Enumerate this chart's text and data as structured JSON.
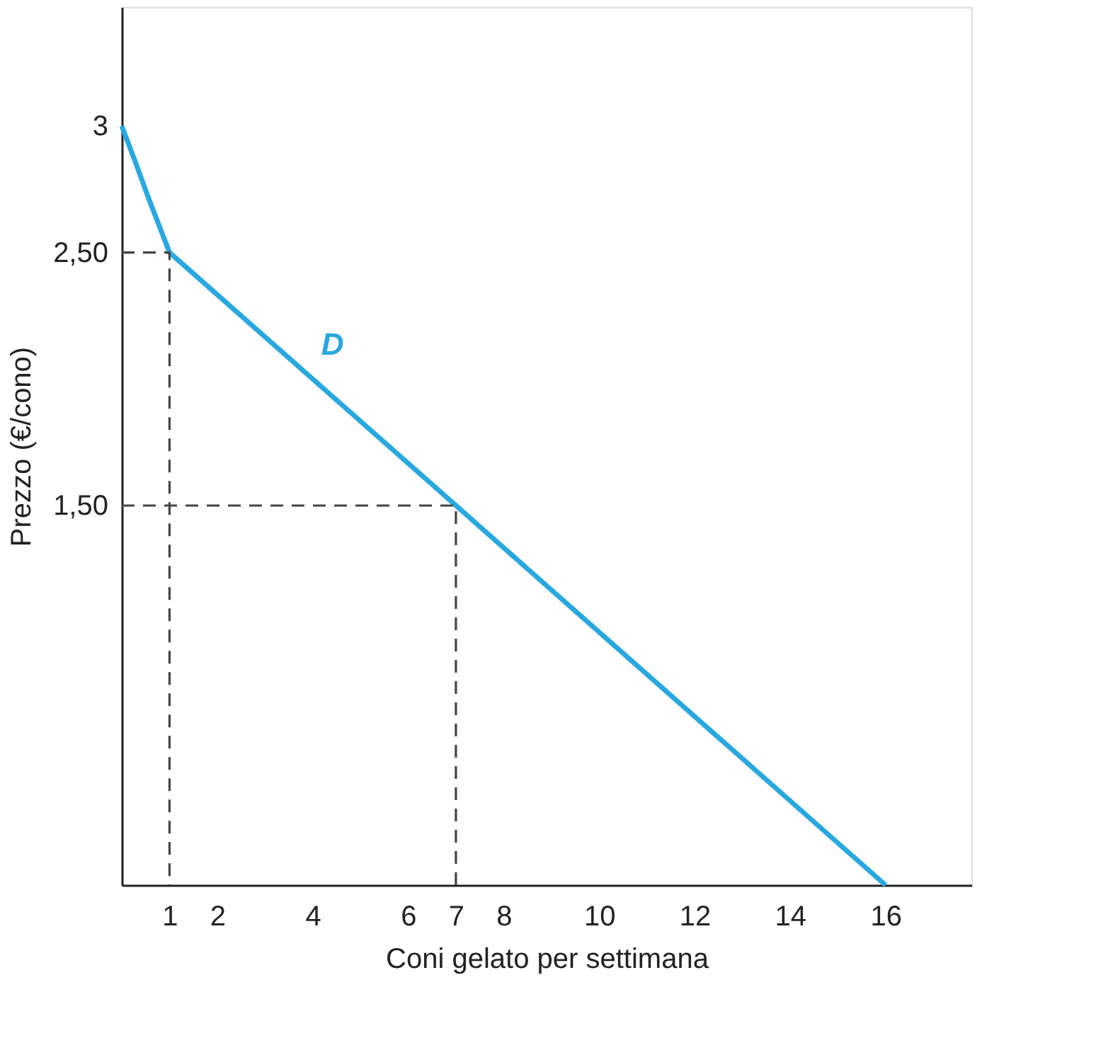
{
  "chart_data": {
    "type": "line",
    "xlabel": "Coni gelato per settimana",
    "ylabel": "Prezzo (€/cono)",
    "xlim": [
      0,
      17.8
    ],
    "ylim": [
      0,
      3.47
    ],
    "xticks": [
      1,
      2,
      4,
      6,
      7,
      8,
      10,
      12,
      14,
      16
    ],
    "yticks": [
      {
        "value": 1.5,
        "label": "1,50"
      },
      {
        "value": 2.5,
        "label": "2,50"
      },
      3
    ],
    "grid": false,
    "marker": "none",
    "series": [
      {
        "name": "D",
        "color": "#29a8e0",
        "line_style": "solid",
        "x": [
          0,
          0.3,
          0.55,
          1,
          7,
          16
        ],
        "values": [
          3,
          2.85,
          2.72,
          2.5,
          1.5,
          0
        ]
      },
      {
        "color": "#444444",
        "line_style": "dashed",
        "x": [
          0,
          1,
          1
        ],
        "values": [
          2.5,
          2.5,
          0
        ]
      },
      {
        "color": "#444444",
        "line_style": "dashed",
        "x": [
          0,
          7,
          7
        ],
        "values": [
          1.5,
          1.5,
          0
        ]
      }
    ]
  }
}
